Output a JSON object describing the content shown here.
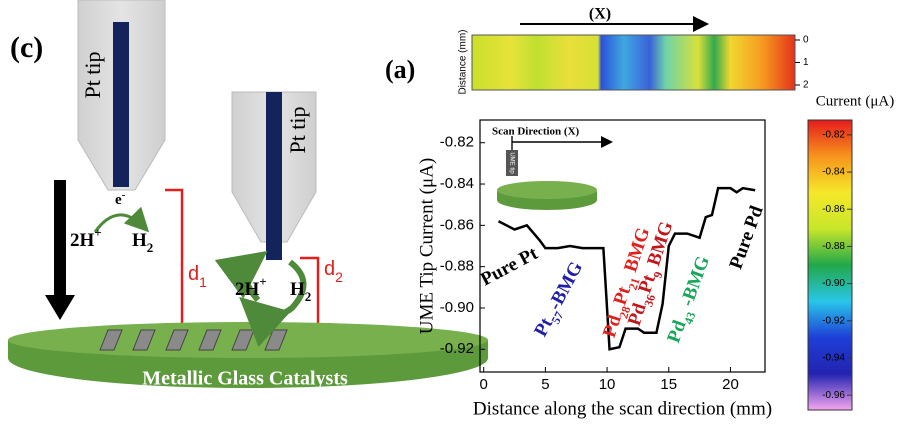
{
  "diagram": {
    "panel_label": "(c)",
    "tip_left": "Pt tip",
    "tip_right": "Pt tip",
    "electron": [
      "e",
      "-"
    ],
    "left_reactant": [
      "2H",
      "+"
    ],
    "left_product": [
      "H",
      "2"
    ],
    "right_reactant": [
      "2H",
      "+"
    ],
    "right_product": [
      "H",
      "2"
    ],
    "d1": [
      "d",
      "1"
    ],
    "d2": [
      "d",
      "2"
    ],
    "substrate": "Metallic Glass Catalysts"
  },
  "chart_data": {
    "type": "line",
    "panel_label": "(a)",
    "xlabel": "Distance along the scan direction (mm)",
    "ylabel": "UME Tip Current (μA)",
    "x": [
      1.2,
      2.5,
      3.5,
      4.5,
      5,
      6,
      7,
      8,
      9.7,
      10.2,
      11,
      11.5,
      12.5,
      13,
      14,
      14.5,
      15,
      15.5,
      16.5,
      17.5,
      18,
      18.5,
      19,
      20,
      20.5,
      21,
      22
    ],
    "series": [
      {
        "color": "#000000",
        "values": [
          -0.858,
          -0.862,
          -0.86,
          -0.867,
          -0.871,
          -0.871,
          -0.87,
          -0.871,
          -0.871,
          -0.92,
          -0.919,
          -0.91,
          -0.91,
          -0.912,
          -0.912,
          -0.898,
          -0.87,
          -0.864,
          -0.864,
          -0.866,
          -0.856,
          -0.855,
          -0.842,
          -0.842,
          -0.844,
          -0.842,
          -0.843
        ]
      }
    ],
    "xlim": [
      -0.3,
      22.8
    ],
    "ylim": [
      -0.931,
      -0.809
    ],
    "xticks": [
      0,
      5,
      10,
      15,
      20
    ],
    "yticks": [
      -0.82,
      -0.84,
      -0.86,
      -0.88,
      {
        "value": -0.9,
        "label": "-0.90"
      },
      -0.92
    ],
    "annotations": [
      {
        "parts": [
          "Pure Pt"
        ],
        "color": "#000000"
      },
      {
        "parts": [
          "Pt",
          "57",
          "-BMG"
        ],
        "color": "#1f1fa8"
      },
      {
        "parts": [
          "Pd",
          "28",
          "Pt",
          "21",
          " BMG"
        ],
        "color": "#e0201c"
      },
      {
        "parts": [
          "Pd",
          "36",
          "Pt",
          "9",
          " BMG"
        ],
        "color": "#c0181c"
      },
      {
        "parts": [
          "Pd",
          "43",
          " -BMG"
        ],
        "color": "#1aa55a"
      },
      {
        "parts": [
          "Pure Pd"
        ],
        "color": "#000000"
      }
    ],
    "inset": {
      "title": "Scan Direction (X)",
      "tip": "UME tip"
    },
    "heatmap": {
      "scan_label": "(X)",
      "ylabel": "Distance (mm)",
      "yticks": [
        0,
        1,
        2
      ]
    },
    "colorbar": {
      "title": "Current (μA)",
      "lim": [
        -0.968,
        -0.812
      ],
      "ticks": [
        -0.82,
        -0.84,
        -0.86,
        -0.88,
        {
          "value": -0.9,
          "label": "-0.90"
        },
        -0.92,
        -0.94,
        -0.96
      ],
      "colors": [
        "#e51c1c",
        "#f7941d",
        "#f5e82a",
        "#c8e62a",
        "#22a84a",
        "#29c6e8",
        "#1e3fd6",
        "#2323b0",
        "#f5a6f0"
      ]
    }
  }
}
